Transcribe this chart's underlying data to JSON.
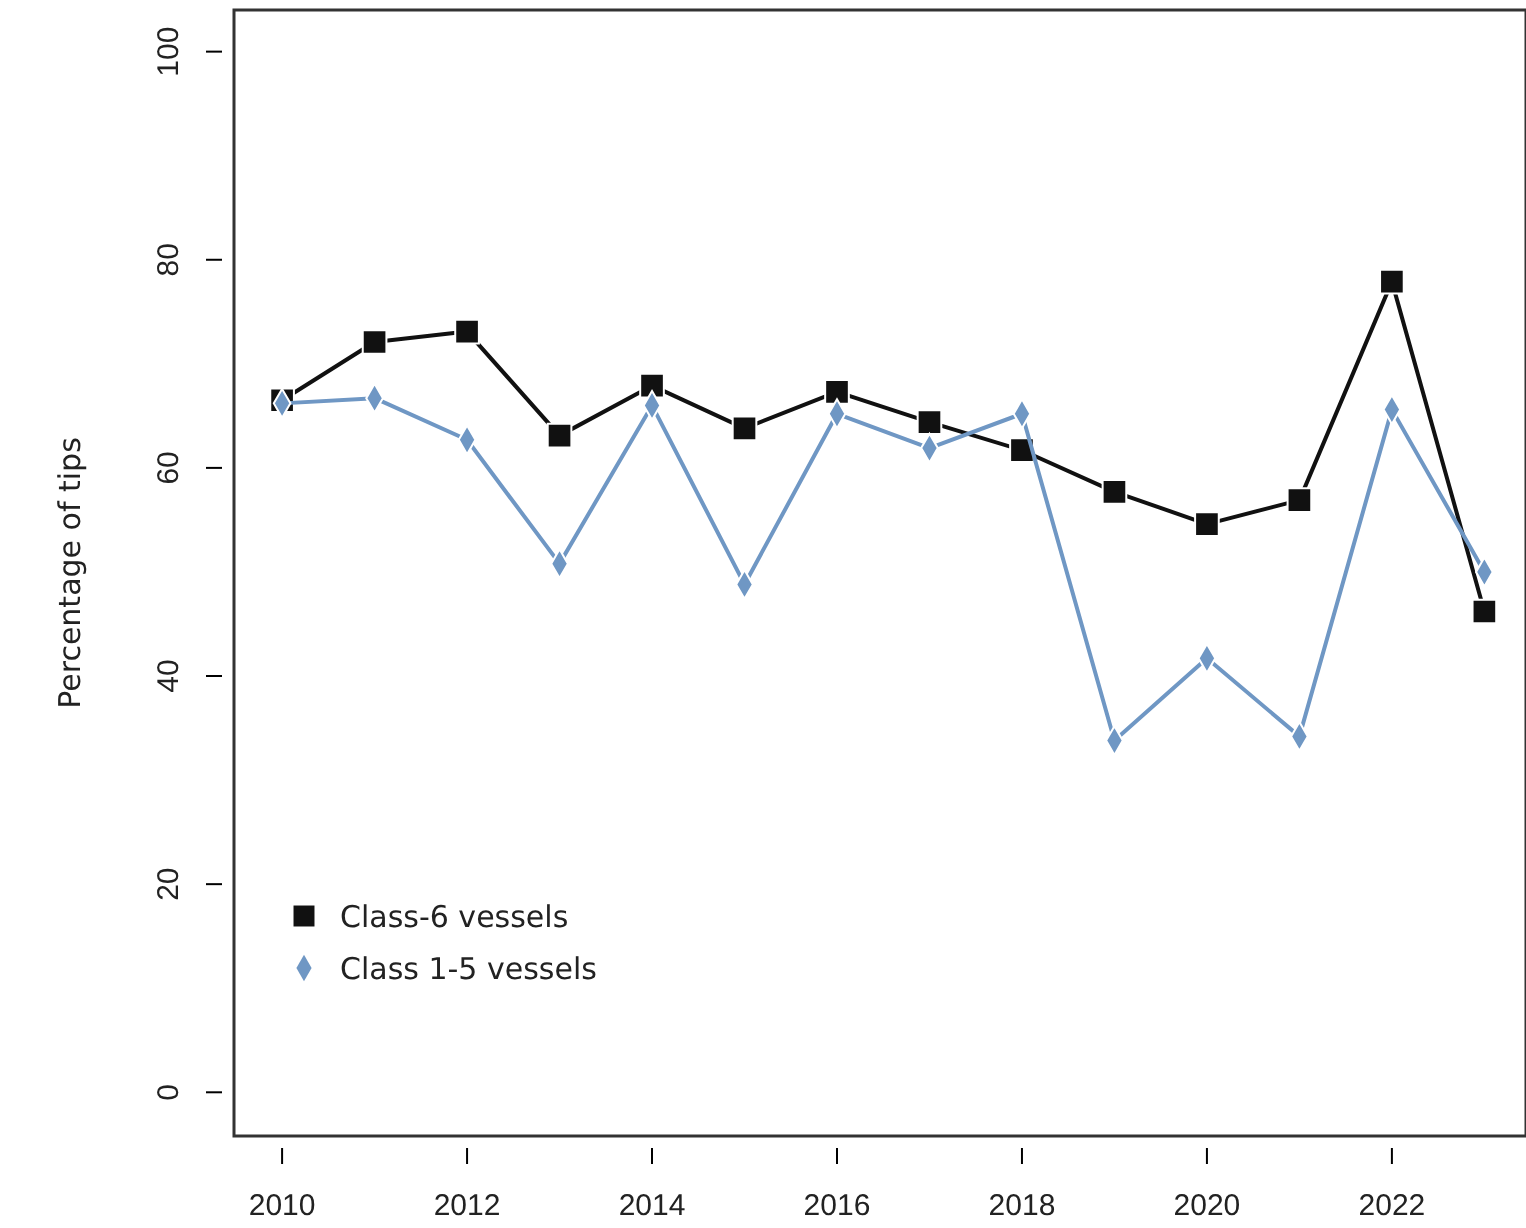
{
  "chart_data": {
    "type": "line",
    "ylabel": "Percentage of tips",
    "x": [
      2010,
      2011,
      2012,
      2013,
      2014,
      2015,
      2016,
      2017,
      2018,
      2019,
      2020,
      2021,
      2022,
      2023
    ],
    "series": [
      {
        "name": "Class-6 vessels",
        "color": "#111111",
        "marker": "square",
        "values": [
          66.5,
          72.1,
          73.1,
          63.1,
          67.9,
          63.8,
          67.3,
          64.4,
          61.7,
          57.7,
          54.6,
          56.9,
          77.9,
          46.2
        ]
      },
      {
        "name": "Class 1-5 vessels",
        "color": "#6f97c4",
        "marker": "diamond",
        "values": [
          66.2,
          66.7,
          62.7,
          50.8,
          66.0,
          48.8,
          65.2,
          61.9,
          65.2,
          33.8,
          41.7,
          34.2,
          65.6,
          50.0
        ]
      }
    ],
    "xlim": [
      2009.48,
      2023.45
    ],
    "xticks": [
      2010,
      2012,
      2014,
      2016,
      2018,
      2020,
      2022
    ],
    "ylim": [
      -4.2,
      104
    ],
    "yticks": [
      0,
      20,
      40,
      60,
      80,
      100
    ],
    "grid": false,
    "legend": "bottom left",
    "line_style": "solid"
  }
}
